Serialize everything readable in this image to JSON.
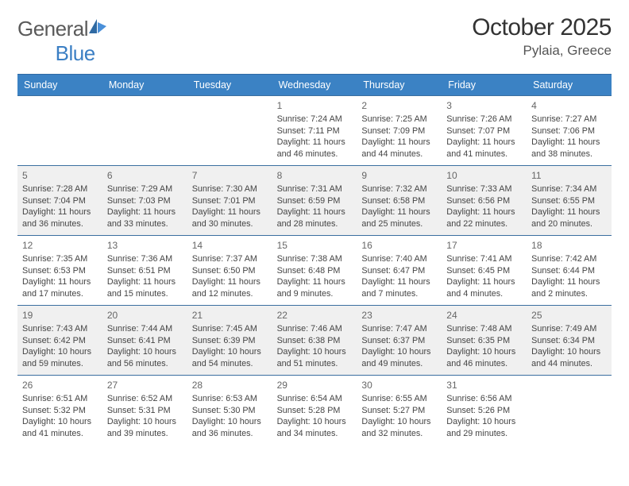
{
  "brand": {
    "part1": "General",
    "part2": "Blue"
  },
  "title": "October 2025",
  "location": "Pylaia, Greece",
  "colors": {
    "header_bg": "#3b82c4",
    "header_border": "#2f6aa3",
    "row_border": "#3b6fa0",
    "shaded_bg": "#f0f0f0",
    "text": "#333333",
    "muted": "#666666"
  },
  "weekdays": [
    "Sunday",
    "Monday",
    "Tuesday",
    "Wednesday",
    "Thursday",
    "Friday",
    "Saturday"
  ],
  "weeks": [
    {
      "shaded": false,
      "cells": [
        {
          "empty": true
        },
        {
          "empty": true
        },
        {
          "empty": true
        },
        {
          "day": "1",
          "sunrise": "Sunrise: 7:24 AM",
          "sunset": "Sunset: 7:11 PM",
          "daylight": "Daylight: 11 hours and 46 minutes."
        },
        {
          "day": "2",
          "sunrise": "Sunrise: 7:25 AM",
          "sunset": "Sunset: 7:09 PM",
          "daylight": "Daylight: 11 hours and 44 minutes."
        },
        {
          "day": "3",
          "sunrise": "Sunrise: 7:26 AM",
          "sunset": "Sunset: 7:07 PM",
          "daylight": "Daylight: 11 hours and 41 minutes."
        },
        {
          "day": "4",
          "sunrise": "Sunrise: 7:27 AM",
          "sunset": "Sunset: 7:06 PM",
          "daylight": "Daylight: 11 hours and 38 minutes."
        }
      ]
    },
    {
      "shaded": true,
      "cells": [
        {
          "day": "5",
          "sunrise": "Sunrise: 7:28 AM",
          "sunset": "Sunset: 7:04 PM",
          "daylight": "Daylight: 11 hours and 36 minutes."
        },
        {
          "day": "6",
          "sunrise": "Sunrise: 7:29 AM",
          "sunset": "Sunset: 7:03 PM",
          "daylight": "Daylight: 11 hours and 33 minutes."
        },
        {
          "day": "7",
          "sunrise": "Sunrise: 7:30 AM",
          "sunset": "Sunset: 7:01 PM",
          "daylight": "Daylight: 11 hours and 30 minutes."
        },
        {
          "day": "8",
          "sunrise": "Sunrise: 7:31 AM",
          "sunset": "Sunset: 6:59 PM",
          "daylight": "Daylight: 11 hours and 28 minutes."
        },
        {
          "day": "9",
          "sunrise": "Sunrise: 7:32 AM",
          "sunset": "Sunset: 6:58 PM",
          "daylight": "Daylight: 11 hours and 25 minutes."
        },
        {
          "day": "10",
          "sunrise": "Sunrise: 7:33 AM",
          "sunset": "Sunset: 6:56 PM",
          "daylight": "Daylight: 11 hours and 22 minutes."
        },
        {
          "day": "11",
          "sunrise": "Sunrise: 7:34 AM",
          "sunset": "Sunset: 6:55 PM",
          "daylight": "Daylight: 11 hours and 20 minutes."
        }
      ]
    },
    {
      "shaded": false,
      "cells": [
        {
          "day": "12",
          "sunrise": "Sunrise: 7:35 AM",
          "sunset": "Sunset: 6:53 PM",
          "daylight": "Daylight: 11 hours and 17 minutes."
        },
        {
          "day": "13",
          "sunrise": "Sunrise: 7:36 AM",
          "sunset": "Sunset: 6:51 PM",
          "daylight": "Daylight: 11 hours and 15 minutes."
        },
        {
          "day": "14",
          "sunrise": "Sunrise: 7:37 AM",
          "sunset": "Sunset: 6:50 PM",
          "daylight": "Daylight: 11 hours and 12 minutes."
        },
        {
          "day": "15",
          "sunrise": "Sunrise: 7:38 AM",
          "sunset": "Sunset: 6:48 PM",
          "daylight": "Daylight: 11 hours and 9 minutes."
        },
        {
          "day": "16",
          "sunrise": "Sunrise: 7:40 AM",
          "sunset": "Sunset: 6:47 PM",
          "daylight": "Daylight: 11 hours and 7 minutes."
        },
        {
          "day": "17",
          "sunrise": "Sunrise: 7:41 AM",
          "sunset": "Sunset: 6:45 PM",
          "daylight": "Daylight: 11 hours and 4 minutes."
        },
        {
          "day": "18",
          "sunrise": "Sunrise: 7:42 AM",
          "sunset": "Sunset: 6:44 PM",
          "daylight": "Daylight: 11 hours and 2 minutes."
        }
      ]
    },
    {
      "shaded": true,
      "cells": [
        {
          "day": "19",
          "sunrise": "Sunrise: 7:43 AM",
          "sunset": "Sunset: 6:42 PM",
          "daylight": "Daylight: 10 hours and 59 minutes."
        },
        {
          "day": "20",
          "sunrise": "Sunrise: 7:44 AM",
          "sunset": "Sunset: 6:41 PM",
          "daylight": "Daylight: 10 hours and 56 minutes."
        },
        {
          "day": "21",
          "sunrise": "Sunrise: 7:45 AM",
          "sunset": "Sunset: 6:39 PM",
          "daylight": "Daylight: 10 hours and 54 minutes."
        },
        {
          "day": "22",
          "sunrise": "Sunrise: 7:46 AM",
          "sunset": "Sunset: 6:38 PM",
          "daylight": "Daylight: 10 hours and 51 minutes."
        },
        {
          "day": "23",
          "sunrise": "Sunrise: 7:47 AM",
          "sunset": "Sunset: 6:37 PM",
          "daylight": "Daylight: 10 hours and 49 minutes."
        },
        {
          "day": "24",
          "sunrise": "Sunrise: 7:48 AM",
          "sunset": "Sunset: 6:35 PM",
          "daylight": "Daylight: 10 hours and 46 minutes."
        },
        {
          "day": "25",
          "sunrise": "Sunrise: 7:49 AM",
          "sunset": "Sunset: 6:34 PM",
          "daylight": "Daylight: 10 hours and 44 minutes."
        }
      ]
    },
    {
      "shaded": false,
      "cells": [
        {
          "day": "26",
          "sunrise": "Sunrise: 6:51 AM",
          "sunset": "Sunset: 5:32 PM",
          "daylight": "Daylight: 10 hours and 41 minutes."
        },
        {
          "day": "27",
          "sunrise": "Sunrise: 6:52 AM",
          "sunset": "Sunset: 5:31 PM",
          "daylight": "Daylight: 10 hours and 39 minutes."
        },
        {
          "day": "28",
          "sunrise": "Sunrise: 6:53 AM",
          "sunset": "Sunset: 5:30 PM",
          "daylight": "Daylight: 10 hours and 36 minutes."
        },
        {
          "day": "29",
          "sunrise": "Sunrise: 6:54 AM",
          "sunset": "Sunset: 5:28 PM",
          "daylight": "Daylight: 10 hours and 34 minutes."
        },
        {
          "day": "30",
          "sunrise": "Sunrise: 6:55 AM",
          "sunset": "Sunset: 5:27 PM",
          "daylight": "Daylight: 10 hours and 32 minutes."
        },
        {
          "day": "31",
          "sunrise": "Sunrise: 6:56 AM",
          "sunset": "Sunset: 5:26 PM",
          "daylight": "Daylight: 10 hours and 29 minutes."
        },
        {
          "empty": true
        }
      ]
    }
  ]
}
